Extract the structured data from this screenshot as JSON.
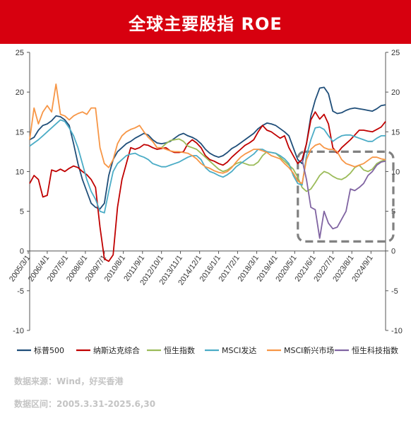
{
  "header": {
    "title": "全球主要股指 ROE"
  },
  "footer": {
    "source": "数据来源：Wind，好买香港",
    "period": "数据区间：2005.3.31-2025.6,30"
  },
  "colors": {
    "title_bg": "#d7000f"
  },
  "chart_data": {
    "type": "line",
    "title": "全球主要股指 ROE",
    "ylim": [
      -10,
      25
    ],
    "yticks": [
      -10,
      -5,
      0,
      5,
      10,
      15,
      20,
      25
    ],
    "xlim": [
      2005.25,
      2025.5
    ],
    "x_tick_labels": [
      "2005/3/1",
      "2006/4/1",
      "2007/5/1",
      "2008/6/1",
      "2009/7/1",
      "2010/8/1",
      "2011/9/1",
      "2012/10/1",
      "2013/11/1",
      "2014/12/1",
      "2016/1/1",
      "2017/2/1",
      "2018/3/1",
      "2019/4/1",
      "2020/5/1",
      "2021/6/1",
      "2022/7/1",
      "2023/8/1",
      "2024/9/1"
    ],
    "x_tick_values": [
      2005.17,
      2006.25,
      2007.33,
      2008.42,
      2009.5,
      2010.58,
      2011.67,
      2012.75,
      2013.83,
      2014.92,
      2016.0,
      2017.08,
      2018.17,
      2019.25,
      2020.33,
      2021.42,
      2022.5,
      2023.58,
      2024.67
    ],
    "grid": false,
    "legend_position": "bottom",
    "annotation": "dashed rounded box highlighting 2021–2025 region",
    "series": [
      {
        "name": "标普500",
        "color": "#1f4e79",
        "x": [
          2005.25,
          2005.5,
          2005.75,
          2006.0,
          2006.25,
          2006.5,
          2006.75,
          2007.0,
          2007.25,
          2007.5,
          2007.75,
          2008.0,
          2008.25,
          2008.5,
          2008.75,
          2009.0,
          2009.25,
          2009.5,
          2009.75,
          2010.0,
          2010.25,
          2010.5,
          2010.75,
          2011.0,
          2011.25,
          2011.5,
          2011.75,
          2012.0,
          2012.25,
          2012.5,
          2012.75,
          2013.0,
          2013.25,
          2013.5,
          2013.75,
          2014.0,
          2014.25,
          2014.5,
          2014.75,
          2015.0,
          2015.25,
          2015.5,
          2015.75,
          2016.0,
          2016.25,
          2016.5,
          2016.75,
          2017.0,
          2017.25,
          2017.5,
          2017.75,
          2018.0,
          2018.25,
          2018.5,
          2018.75,
          2019.0,
          2019.25,
          2019.5,
          2019.75,
          2020.0,
          2020.25,
          2020.5,
          2020.75,
          2021.0,
          2021.25,
          2021.5,
          2021.75,
          2022.0,
          2022.25,
          2022.5,
          2022.75,
          2023.0,
          2023.25,
          2023.5,
          2023.75,
          2024.0,
          2024.25,
          2024.5,
          2024.75,
          2025.0,
          2025.25,
          2025.5
        ],
        "y": [
          14.0,
          14.3,
          15.2,
          15.8,
          16.0,
          16.4,
          17.0,
          16.9,
          16.5,
          15.8,
          13.5,
          11.0,
          9.0,
          7.5,
          6.0,
          5.5,
          5.3,
          6.0,
          9.5,
          11.5,
          12.5,
          13.0,
          13.5,
          13.8,
          14.2,
          14.5,
          14.8,
          14.6,
          14.0,
          13.6,
          13.5,
          13.6,
          13.8,
          14.2,
          14.6,
          14.8,
          14.5,
          14.3,
          14.0,
          13.5,
          12.8,
          12.3,
          12.0,
          11.8,
          12.0,
          12.4,
          12.9,
          13.2,
          13.6,
          14.0,
          14.4,
          14.8,
          15.4,
          15.8,
          16.1,
          16.0,
          15.8,
          15.4,
          15.0,
          14.5,
          13.0,
          11.5,
          11.0,
          13.5,
          17.0,
          19.0,
          20.5,
          20.6,
          19.8,
          17.6,
          17.3,
          17.4,
          17.7,
          17.9,
          18.0,
          17.9,
          17.8,
          17.7,
          17.6,
          17.9,
          18.3,
          18.4
        ]
      },
      {
        "name": "纳斯达克综合",
        "color": "#c00000",
        "x": [
          2005.25,
          2005.5,
          2005.75,
          2006.0,
          2006.25,
          2006.5,
          2006.75,
          2007.0,
          2007.25,
          2007.5,
          2007.75,
          2008.0,
          2008.25,
          2008.5,
          2008.75,
          2009.0,
          2009.25,
          2009.5,
          2009.75,
          2010.0,
          2010.25,
          2010.5,
          2010.75,
          2011.0,
          2011.25,
          2011.5,
          2011.75,
          2012.0,
          2012.25,
          2012.5,
          2012.75,
          2013.0,
          2013.25,
          2013.5,
          2013.75,
          2014.0,
          2014.25,
          2014.5,
          2014.75,
          2015.0,
          2015.25,
          2015.5,
          2015.75,
          2016.0,
          2016.25,
          2016.5,
          2016.75,
          2017.0,
          2017.25,
          2017.5,
          2017.75,
          2018.0,
          2018.25,
          2018.5,
          2018.75,
          2019.0,
          2019.25,
          2019.5,
          2019.75,
          2020.0,
          2020.25,
          2020.5,
          2020.75,
          2021.0,
          2021.25,
          2021.5,
          2021.75,
          2022.0,
          2022.25,
          2022.5,
          2022.75,
          2023.0,
          2023.25,
          2023.5,
          2023.75,
          2024.0,
          2024.25,
          2024.5,
          2024.75,
          2025.0,
          2025.25,
          2025.5
        ],
        "y": [
          8.5,
          9.5,
          9.0,
          6.8,
          7.0,
          10.2,
          10.0,
          10.3,
          10.0,
          10.4,
          10.7,
          10.5,
          10.0,
          9.6,
          9.0,
          8.0,
          3.0,
          -1.0,
          -1.3,
          -0.5,
          5.5,
          9.0,
          11.0,
          13.0,
          12.8,
          13.0,
          13.4,
          13.3,
          13.0,
          12.8,
          12.9,
          13.0,
          12.6,
          12.4,
          12.4,
          12.5,
          13.5,
          14.0,
          13.6,
          13.0,
          12.0,
          11.5,
          11.3,
          11.0,
          10.8,
          11.2,
          11.8,
          12.3,
          12.8,
          13.3,
          13.6,
          14.0,
          15.0,
          15.8,
          15.2,
          15.0,
          14.6,
          14.2,
          14.5,
          13.0,
          12.0,
          11.0,
          11.5,
          13.5,
          16.5,
          17.5,
          16.6,
          17.2,
          16.0,
          13.0,
          12.3,
          13.0,
          13.5,
          14.0,
          14.6,
          15.2,
          15.2,
          15.1,
          15.0,
          15.3,
          15.6,
          16.3
        ]
      },
      {
        "name": "恒生指数",
        "color": "#9bbb59",
        "x": [
          2012.75,
          2013.0,
          2013.25,
          2013.5,
          2013.75,
          2014.0,
          2014.25,
          2014.5,
          2014.75,
          2015.0,
          2015.25,
          2015.5,
          2015.75,
          2016.0,
          2016.25,
          2016.5,
          2016.75,
          2017.0,
          2017.25,
          2017.5,
          2017.75,
          2018.0,
          2018.25,
          2018.5,
          2018.75,
          2019.0,
          2019.25,
          2019.5,
          2019.75,
          2020.0,
          2020.25,
          2020.5,
          2020.75,
          2021.0,
          2021.25,
          2021.5,
          2021.75,
          2022.0,
          2022.25,
          2022.5,
          2022.75,
          2023.0,
          2023.25,
          2023.5,
          2023.75,
          2024.0,
          2024.25,
          2024.5,
          2024.75,
          2025.0,
          2025.25,
          2025.5
        ],
        "y": [
          13.0,
          13.5,
          13.9,
          14.0,
          14.1,
          13.8,
          13.2,
          13.0,
          12.8,
          12.3,
          11.8,
          11.3,
          10.8,
          10.3,
          10.0,
          10.2,
          10.6,
          11.0,
          11.2,
          11.0,
          10.8,
          10.8,
          11.2,
          12.0,
          12.5,
          12.4,
          12.3,
          11.8,
          11.3,
          10.8,
          10.3,
          9.3,
          8.0,
          7.5,
          7.8,
          8.6,
          9.5,
          10.0,
          9.8,
          9.4,
          9.1,
          9.0,
          9.3,
          9.8,
          10.5,
          10.8,
          10.2,
          10.0,
          10.3,
          11.0,
          11.3,
          11.5
        ]
      },
      {
        "name": "MSCI发达",
        "color": "#4bacc6",
        "x": [
          2005.25,
          2005.5,
          2005.75,
          2006.0,
          2006.25,
          2006.5,
          2006.75,
          2007.0,
          2007.25,
          2007.5,
          2007.75,
          2008.0,
          2008.25,
          2008.5,
          2008.75,
          2009.0,
          2009.25,
          2009.5,
          2009.75,
          2010.0,
          2010.25,
          2010.5,
          2010.75,
          2011.0,
          2011.25,
          2011.5,
          2011.75,
          2012.0,
          2012.25,
          2012.5,
          2012.75,
          2013.0,
          2013.25,
          2013.5,
          2013.75,
          2014.0,
          2014.25,
          2014.5,
          2014.75,
          2015.0,
          2015.25,
          2015.5,
          2015.75,
          2016.0,
          2016.25,
          2016.5,
          2016.75,
          2017.0,
          2017.25,
          2017.5,
          2017.75,
          2018.0,
          2018.25,
          2018.5,
          2018.75,
          2019.0,
          2019.25,
          2019.5,
          2019.75,
          2020.0,
          2020.25,
          2020.5,
          2020.75,
          2021.0,
          2021.25,
          2021.5,
          2021.75,
          2022.0,
          2022.25,
          2022.5,
          2022.75,
          2023.0,
          2023.25,
          2023.5,
          2023.75,
          2024.0,
          2024.25,
          2024.5,
          2024.75,
          2025.0,
          2025.25,
          2025.5
        ],
        "y": [
          13.2,
          13.6,
          14.0,
          14.5,
          15.0,
          15.5,
          16.0,
          16.5,
          16.3,
          15.5,
          14.5,
          13.0,
          11.0,
          9.0,
          7.5,
          6.5,
          5.0,
          4.8,
          7.5,
          10.0,
          11.0,
          11.5,
          12.0,
          12.2,
          12.3,
          12.0,
          11.8,
          11.5,
          11.0,
          10.8,
          10.6,
          10.6,
          10.8,
          11.0,
          11.2,
          11.5,
          11.8,
          12.0,
          12.0,
          11.5,
          10.5,
          10.0,
          9.8,
          9.5,
          9.3,
          9.6,
          10.0,
          10.6,
          11.0,
          11.4,
          11.8,
          12.2,
          12.8,
          12.8,
          12.5,
          12.4,
          12.3,
          12.0,
          11.6,
          11.0,
          9.5,
          8.5,
          8.3,
          12.0,
          14.0,
          15.5,
          15.6,
          15.3,
          14.5,
          13.8,
          14.2,
          14.5,
          14.6,
          14.6,
          14.4,
          14.2,
          14.0,
          13.8,
          13.8,
          14.2,
          14.5,
          14.5
        ]
      },
      {
        "name": "MSCI新兴市场",
        "color": "#f79646",
        "x": [
          2005.25,
          2005.5,
          2005.75,
          2006.0,
          2006.25,
          2006.5,
          2006.75,
          2007.0,
          2007.25,
          2007.5,
          2007.75,
          2008.0,
          2008.25,
          2008.5,
          2008.75,
          2009.0,
          2009.25,
          2009.5,
          2009.75,
          2010.0,
          2010.25,
          2010.5,
          2010.75,
          2011.0,
          2011.25,
          2011.5,
          2011.75,
          2012.0,
          2012.25,
          2012.5,
          2012.75,
          2013.0,
          2013.25,
          2013.5,
          2013.75,
          2014.0,
          2014.25,
          2014.5,
          2014.75,
          2015.0,
          2015.25,
          2015.5,
          2015.75,
          2016.0,
          2016.25,
          2016.5,
          2016.75,
          2017.0,
          2017.25,
          2017.5,
          2017.75,
          2018.0,
          2018.25,
          2018.5,
          2018.75,
          2019.0,
          2019.25,
          2019.5,
          2019.75,
          2020.0,
          2020.25,
          2020.5,
          2020.75,
          2021.0,
          2021.25,
          2021.5,
          2021.75,
          2022.0,
          2022.25,
          2022.5,
          2022.75,
          2023.0,
          2023.25,
          2023.5,
          2023.75,
          2024.0,
          2024.25,
          2024.5,
          2024.75,
          2025.0,
          2025.25,
          2025.5
        ],
        "y": [
          14.0,
          18.0,
          16.0,
          17.5,
          18.3,
          17.5,
          21.0,
          17.2,
          17.0,
          16.5,
          17.0,
          17.3,
          17.5,
          17.2,
          18.0,
          18.0,
          13.0,
          11.0,
          10.5,
          11.5,
          13.5,
          14.5,
          15.0,
          15.3,
          15.5,
          15.8,
          15.0,
          14.3,
          13.8,
          13.0,
          13.0,
          12.8,
          12.6,
          12.5,
          12.5,
          12.4,
          12.3,
          12.0,
          11.6,
          11.0,
          10.6,
          10.4,
          10.1,
          9.9,
          9.8,
          10.0,
          10.5,
          11.2,
          11.8,
          12.2,
          12.5,
          12.8,
          12.8,
          12.6,
          12.4,
          12.0,
          11.8,
          11.6,
          11.0,
          10.5,
          9.8,
          8.8,
          8.5,
          11.5,
          12.8,
          13.3,
          13.5,
          13.0,
          12.8,
          12.8,
          12.5,
          11.5,
          11.0,
          10.8,
          10.6,
          10.8,
          11.0,
          11.4,
          11.8,
          11.8,
          11.6,
          11.5
        ]
      },
      {
        "name": "恒生科技指数",
        "color": "#8064a2",
        "x": [
          2020.75,
          2021.0,
          2021.25,
          2021.5,
          2021.75,
          2022.0,
          2022.25,
          2022.5,
          2022.75,
          2023.0,
          2023.25,
          2023.5,
          2023.75,
          2024.0,
          2024.25,
          2024.5,
          2024.75,
          2025.0,
          2025.25,
          2025.5
        ],
        "y": [
          11.5,
          9.0,
          5.5,
          5.2,
          1.6,
          5.0,
          3.5,
          2.8,
          3.0,
          4.0,
          5.0,
          7.8,
          7.6,
          8.0,
          8.5,
          9.5,
          10.0,
          10.8,
          11.2,
          11.3
        ]
      }
    ]
  }
}
